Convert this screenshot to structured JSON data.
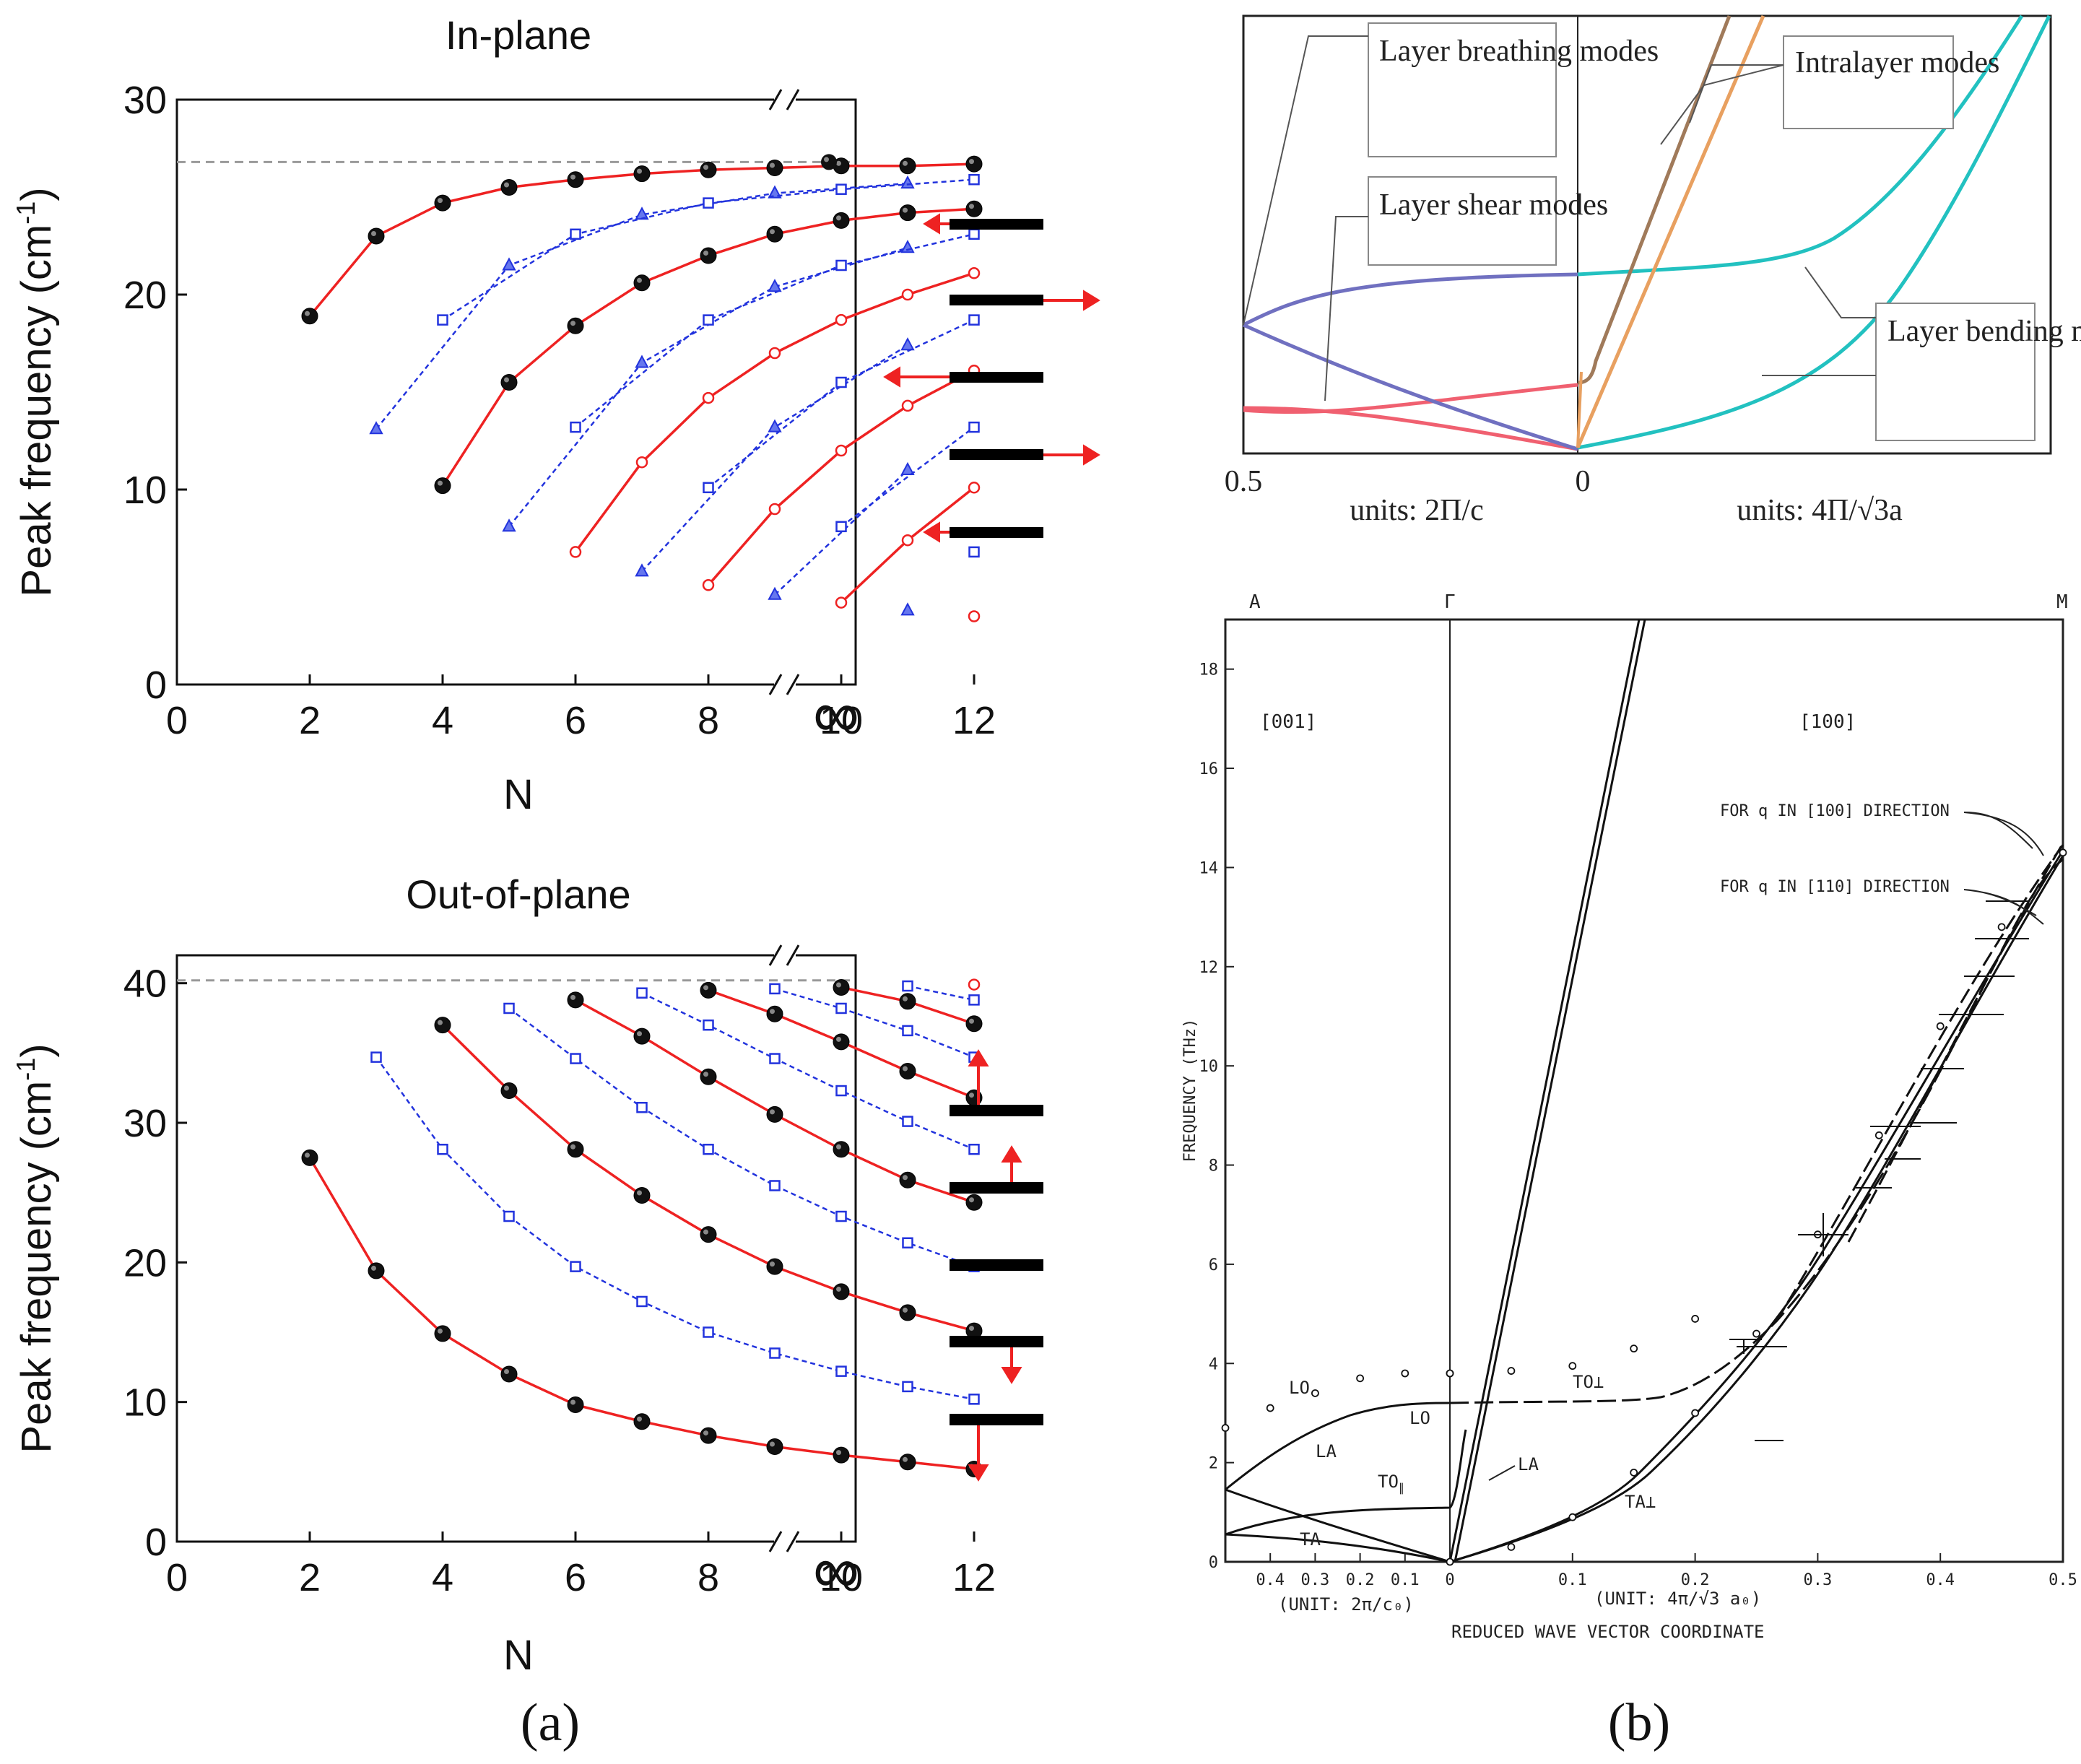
{
  "figure": {
    "label_a": "(a)",
    "label_b": "(b)"
  },
  "colors": {
    "red": "#ee2222",
    "blue": "#2233dd",
    "dash": "#999999",
    "bb": "#e8a060",
    "intra": "#a07a5a",
    "cyan": "#22c1c0",
    "shear": "#7070c0",
    "pink": "#f06070"
  },
  "chart_data": [
    {
      "id": "inplane",
      "type": "line",
      "title": "In-plane",
      "xlabel": "N",
      "ylabel": "Peak frequency (cm",
      "ylabel_sup": "-1",
      "ylabel_end": ")",
      "xlim": [
        0,
        12
      ],
      "ylim": [
        0,
        30
      ],
      "xticks": [
        "0",
        "2",
        "4",
        "6",
        "8",
        "10",
        "12"
      ],
      "yticks": [
        "0",
        "10",
        "20",
        "30"
      ],
      "inf_label": "∞",
      "bulk_value": 26.8,
      "bulk_point": 26.8,
      "series": [
        {
          "style": "red-ball",
          "N": [
            2,
            3,
            4,
            5,
            6,
            7,
            8,
            9,
            10,
            11,
            12
          ],
          "values": [
            18.9,
            23.0,
            24.7,
            25.5,
            25.9,
            26.2,
            26.4,
            26.5,
            26.6,
            26.6,
            26.7
          ]
        },
        {
          "style": "blue-tri",
          "N": [
            3,
            5,
            7,
            9,
            11
          ],
          "values": [
            13.1,
            21.5,
            24.1,
            25.2,
            25.7
          ]
        },
        {
          "style": "blue-sq",
          "N": [
            4,
            6,
            8,
            10,
            12
          ],
          "values": [
            18.7,
            23.1,
            24.7,
            25.4,
            25.9
          ]
        },
        {
          "style": "red-ball",
          "N": [
            4,
            5,
            6,
            7,
            8,
            9,
            10,
            11,
            12
          ],
          "values": [
            10.2,
            15.5,
            18.4,
            20.6,
            22.0,
            23.1,
            23.8,
            24.2,
            24.4
          ]
        },
        {
          "style": "blue-tri",
          "N": [
            5,
            7,
            9,
            11
          ],
          "values": [
            8.1,
            16.5,
            20.4,
            22.4
          ]
        },
        {
          "style": "blue-sq",
          "N": [
            6,
            8,
            10,
            12
          ],
          "values": [
            13.2,
            18.7,
            21.5,
            23.1
          ]
        },
        {
          "style": "red-open",
          "N": [
            6,
            7,
            8,
            9,
            10,
            11,
            12
          ],
          "values": [
            6.8,
            11.4,
            14.7,
            17.0,
            18.7,
            20.0,
            21.1
          ]
        },
        {
          "style": "blue-tri",
          "N": [
            7,
            9,
            11
          ],
          "values": [
            5.8,
            13.2,
            17.4
          ]
        },
        {
          "style": "blue-sq",
          "N": [
            8,
            10,
            12
          ],
          "values": [
            10.1,
            15.5,
            18.7
          ]
        },
        {
          "style": "red-open",
          "N": [
            8,
            9,
            10,
            11,
            12
          ],
          "values": [
            5.1,
            9.0,
            12.0,
            14.3,
            16.1
          ]
        },
        {
          "style": "blue-tri",
          "N": [
            9,
            11
          ],
          "values": [
            4.6,
            11.0
          ]
        },
        {
          "style": "blue-sq",
          "N": [
            10,
            12
          ],
          "values": [
            8.1,
            13.2
          ]
        },
        {
          "style": "red-open",
          "N": [
            10,
            11,
            12
          ],
          "values": [
            4.2,
            7.4,
            10.1
          ]
        },
        {
          "style": "blue-tri",
          "N": [
            11
          ],
          "values": [
            3.8
          ]
        },
        {
          "style": "blue-sq",
          "N": [
            12
          ],
          "values": [
            6.8
          ]
        },
        {
          "style": "red-open",
          "N": [
            12
          ],
          "values": [
            3.5
          ]
        }
      ]
    },
    {
      "id": "outofplane",
      "type": "line",
      "title": "Out-of-plane",
      "xlabel": "N",
      "ylabel": "Peak frequency (cm",
      "ylabel_sup": "-1",
      "ylabel_end": ")",
      "xlim": [
        0,
        12
      ],
      "ylim": [
        0,
        42
      ],
      "xticks": [
        "0",
        "2",
        "4",
        "6",
        "8",
        "10",
        "12"
      ],
      "yticks": [
        "0",
        "10",
        "20",
        "30",
        "40"
      ],
      "inf_label": "∞",
      "bulk_value": 40.2,
      "series": [
        {
          "style": "red-ball",
          "N": [
            2,
            3,
            4,
            5,
            6,
            7,
            8,
            9,
            10,
            11,
            12
          ],
          "values": [
            27.5,
            19.4,
            14.9,
            12.0,
            9.8,
            8.6,
            7.6,
            6.8,
            6.2,
            5.7,
            5.2
          ]
        },
        {
          "style": "blue-sq",
          "N": [
            3,
            4,
            5,
            6,
            7,
            8,
            9,
            10,
            11,
            12
          ],
          "values": [
            34.7,
            28.1,
            23.3,
            19.7,
            17.2,
            15.0,
            13.5,
            12.2,
            11.1,
            10.2
          ]
        },
        {
          "style": "red-ball",
          "N": [
            4,
            5,
            6,
            7,
            8,
            9,
            10,
            11,
            12
          ],
          "values": [
            37.0,
            32.3,
            28.1,
            24.8,
            22.0,
            19.7,
            17.9,
            16.4,
            15.1
          ]
        },
        {
          "style": "blue-sq",
          "N": [
            5,
            6,
            7,
            8,
            9,
            10,
            11,
            12
          ],
          "values": [
            38.2,
            34.6,
            31.1,
            28.1,
            25.5,
            23.3,
            21.4,
            19.7
          ]
        },
        {
          "style": "red-ball",
          "N": [
            6,
            7,
            8,
            9,
            10,
            11,
            12
          ],
          "values": [
            38.8,
            36.2,
            33.3,
            30.6,
            28.1,
            25.9,
            24.3
          ]
        },
        {
          "style": "blue-sq",
          "N": [
            7,
            8,
            9,
            10,
            11,
            12
          ],
          "values": [
            39.3,
            37.0,
            34.6,
            32.3,
            30.1,
            28.1
          ]
        },
        {
          "style": "red-ball",
          "N": [
            8,
            9,
            10,
            11,
            12
          ],
          "values": [
            39.5,
            37.8,
            35.8,
            33.7,
            31.8
          ]
        },
        {
          "style": "blue-sq",
          "N": [
            9,
            10,
            11,
            12
          ],
          "values": [
            39.6,
            38.2,
            36.6,
            34.7
          ]
        },
        {
          "style": "red-ball",
          "N": [
            10,
            11,
            12
          ],
          "values": [
            39.7,
            38.7,
            37.1
          ]
        },
        {
          "style": "blue-sq",
          "N": [
            11,
            12
          ],
          "values": [
            39.8,
            38.8
          ]
        },
        {
          "style": "red-open",
          "N": [
            12
          ],
          "values": [
            39.9
          ]
        }
      ]
    },
    {
      "id": "graphite-schematic",
      "type": "line",
      "left_axis_label": "0.5",
      "center_axis_label": "0",
      "left_units": "units: 2Π/c",
      "right_units": "units: 4Π/√3a",
      "callouts": [
        "Layer breathing modes",
        "Layer shear modes",
        "Intralayer modes",
        "Layer bending modes"
      ]
    },
    {
      "id": "graphite-measured",
      "type": "scatter",
      "ylabel": "FREQUENCY (THz)",
      "ylim": [
        0,
        19
      ],
      "yticks": [
        "0",
        "2",
        "4",
        "6",
        "8",
        "10",
        "12",
        "14",
        "16",
        "18"
      ],
      "left_xticks": [
        "0.4",
        "0.3",
        "0.2",
        "0.1"
      ],
      "right_xticks": [
        "0",
        "0.1",
        "0.2",
        "0.3",
        "0.4",
        "0.5"
      ],
      "left_unit": "(UNIT: 2π/c₀)",
      "right_unit": "(UNIT: 4π/√3 a₀)",
      "xlabel": "REDUCED WAVE VECTOR COORDINATE",
      "points_top": [
        "A",
        "Γ",
        "M"
      ],
      "direction_left": "[001]",
      "direction_right": "[100]",
      "annotation_100": "FOR q IN [100] DIRECTION",
      "annotation_110": "FOR q IN [110] DIRECTION",
      "branch_labels": [
        "LO",
        "LA",
        "TO",
        "TA",
        "LO",
        "LA",
        "TO⊥",
        "TA⊥"
      ],
      "sub_perp": "⊥",
      "sub_par": "∥",
      "lo_left": {
        "q": [
          0.5,
          0.4,
          0.3,
          0.2,
          0.1,
          0.0
        ],
        "f": [
          2.7,
          3.1,
          3.4,
          3.7,
          3.8,
          3.8
        ]
      },
      "to_perp": {
        "q": [
          0.0,
          0.05,
          0.1,
          0.15,
          0.2
        ],
        "f": [
          3.8,
          3.85,
          3.95,
          4.3,
          4.9
        ]
      },
      "ta_perp": {
        "q": [
          0.0,
          0.05,
          0.1,
          0.15,
          0.2,
          0.25,
          0.3,
          0.35,
          0.4,
          0.45,
          0.5
        ],
        "f": [
          0.0,
          0.3,
          0.9,
          1.8,
          3.0,
          4.6,
          6.6,
          8.6,
          10.8,
          12.8,
          14.3
        ]
      }
    }
  ]
}
